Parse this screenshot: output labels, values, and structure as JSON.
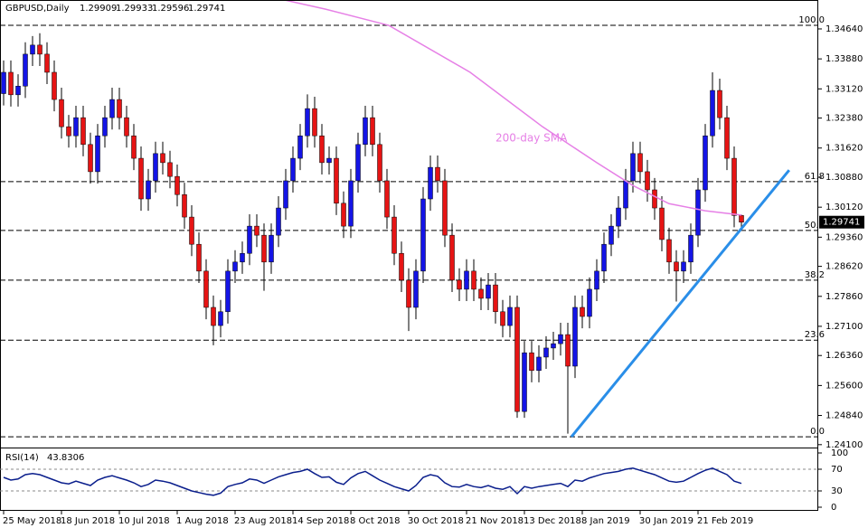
{
  "chart_data": {
    "type": "candlestick",
    "header": {
      "symbol": "GBPUSD,Daily",
      "open": 1.29909,
      "high": 1.29933,
      "low": 1.29596,
      "close": 1.29741
    },
    "candles": {
      "open": [
        1.33,
        1.3354,
        1.3297,
        1.3319,
        1.34,
        1.3423,
        1.34,
        1.3354,
        1.3285,
        1.3216,
        1.3193,
        1.3239,
        1.3171,
        1.3102,
        1.3193,
        1.3239,
        1.3285,
        1.3239,
        1.3193,
        1.3136,
        1.3033,
        1.3079,
        1.3148,
        1.3125,
        1.309,
        1.3044,
        1.2987,
        1.2918,
        1.285,
        1.2758,
        1.2712,
        1.2747,
        1.285,
        1.2873,
        1.2895,
        1.2964,
        1.2941,
        1.2873,
        1.2941,
        1.301,
        1.3079,
        1.3136,
        1.3193,
        1.3262,
        1.3193,
        1.3125,
        1.3136,
        1.3022,
        1.2964,
        1.3079,
        1.3171,
        1.3239,
        1.3171,
        1.3079,
        1.2987,
        1.2895,
        1.2827,
        1.2758,
        1.285,
        1.3033,
        1.3113,
        1.3079,
        1.2941,
        1.2827,
        1.2804,
        1.285,
        1.2804,
        1.2781,
        1.2815,
        1.2747,
        1.2712,
        1.2758,
        1.2494,
        1.2643,
        1.2598,
        1.2632,
        1.2655,
        1.2666,
        1.2689,
        1.2609,
        1.2758,
        1.2735,
        1.2804,
        1.285,
        1.2918,
        1.2964,
        1.301,
        1.3079,
        1.3148,
        1.3102,
        1.3056,
        1.301,
        1.293,
        1.2873,
        1.285,
        1.2873,
        1.2941,
        1.3056,
        1.3193,
        1.3308,
        1.3239,
        1.3136,
        1.2991
      ],
      "high": [
        1.3384,
        1.3384,
        1.3349,
        1.343,
        1.3446,
        1.3453,
        1.343,
        1.3384,
        1.3315,
        1.3246,
        1.3269,
        1.3269,
        1.3201,
        1.3223,
        1.3269,
        1.3315,
        1.3315,
        1.3269,
        1.3223,
        1.3166,
        1.3109,
        1.3178,
        1.3178,
        1.3155,
        1.312,
        1.3074,
        1.3017,
        1.2948,
        1.288,
        1.2788,
        1.2777,
        1.288,
        1.2903,
        1.2925,
        1.2994,
        1.2994,
        1.2971,
        1.2971,
        1.304,
        1.3109,
        1.3166,
        1.3223,
        1.3298,
        1.3292,
        1.3223,
        1.3166,
        1.3166,
        1.3052,
        1.3109,
        1.3201,
        1.3269,
        1.3269,
        1.3201,
        1.3109,
        1.3017,
        1.2925,
        1.2857,
        1.288,
        1.3063,
        1.3143,
        1.3143,
        1.3109,
        1.2971,
        1.2857,
        1.288,
        1.288,
        1.2834,
        1.2845,
        1.2845,
        1.2777,
        1.2788,
        1.2788,
        1.2673,
        1.2673,
        1.2662,
        1.2685,
        1.2696,
        1.2719,
        1.2719,
        1.2788,
        1.2788,
        1.2834,
        1.288,
        1.2948,
        1.2994,
        1.304,
        1.3109,
        1.3178,
        1.3178,
        1.3132,
        1.3086,
        1.304,
        1.296,
        1.2903,
        1.2903,
        1.2971,
        1.3086,
        1.3223,
        1.3354,
        1.3338,
        1.3269,
        1.3166,
        1.2993
      ],
      "low": [
        1.327,
        1.3267,
        1.3267,
        1.3289,
        1.337,
        1.337,
        1.3324,
        1.3255,
        1.3186,
        1.3163,
        1.3163,
        1.3141,
        1.3072,
        1.3072,
        1.3163,
        1.3209,
        1.3209,
        1.3163,
        1.3106,
        1.3003,
        1.3003,
        1.3049,
        1.3095,
        1.306,
        1.3014,
        1.2957,
        1.2888,
        1.282,
        1.2728,
        1.2662,
        1.2682,
        1.2717,
        1.282,
        1.2843,
        1.2865,
        1.2911,
        1.28,
        1.2843,
        1.2911,
        1.298,
        1.3049,
        1.3106,
        1.3163,
        1.3163,
        1.3095,
        1.3095,
        1.2992,
        1.2934,
        1.2934,
        1.3049,
        1.3141,
        1.3141,
        1.3049,
        1.2957,
        1.2865,
        1.2797,
        1.2698,
        1.2728,
        1.282,
        1.3003,
        1.3049,
        1.2911,
        1.2797,
        1.2774,
        1.2774,
        1.2774,
        1.2751,
        1.2751,
        1.2717,
        1.2682,
        1.2682,
        1.2478,
        1.2478,
        1.2568,
        1.2568,
        1.2602,
        1.2625,
        1.2636,
        1.2438,
        1.2579,
        1.2705,
        1.2705,
        1.2774,
        1.282,
        1.2888,
        1.2934,
        1.298,
        1.3049,
        1.3072,
        1.3026,
        1.298,
        1.29,
        1.2843,
        1.2773,
        1.282,
        1.2843,
        1.2911,
        1.3026,
        1.3163,
        1.3209,
        1.3106,
        1.2961,
        1.296
      ],
      "close": [
        1.3354,
        1.3297,
        1.3319,
        1.34,
        1.3423,
        1.34,
        1.3354,
        1.3285,
        1.3216,
        1.3193,
        1.3239,
        1.3171,
        1.3102,
        1.3193,
        1.3239,
        1.3285,
        1.3239,
        1.3193,
        1.3136,
        1.3033,
        1.3079,
        1.3148,
        1.3125,
        1.309,
        1.3044,
        1.2987,
        1.2918,
        1.285,
        1.2758,
        1.2712,
        1.2747,
        1.285,
        1.2873,
        1.2895,
        1.2964,
        1.2941,
        1.2873,
        1.2941,
        1.301,
        1.3079,
        1.3136,
        1.3193,
        1.3262,
        1.3193,
        1.3125,
        1.3136,
        1.3022,
        1.2964,
        1.3079,
        1.3171,
        1.3239,
        1.3171,
        1.3079,
        1.2987,
        1.2895,
        1.2827,
        1.2758,
        1.285,
        1.3033,
        1.3113,
        1.3079,
        1.2941,
        1.2827,
        1.2804,
        1.285,
        1.2804,
        1.2781,
        1.2815,
        1.2747,
        1.2712,
        1.2758,
        1.2494,
        1.2643,
        1.2598,
        1.2632,
        1.2655,
        1.2666,
        1.2689,
        1.2609,
        1.2758,
        1.2735,
        1.2804,
        1.285,
        1.2918,
        1.2964,
        1.301,
        1.3079,
        1.3148,
        1.3102,
        1.3056,
        1.301,
        1.293,
        1.2873,
        1.285,
        1.2873,
        1.2941,
        1.3056,
        1.3193,
        1.3308,
        1.3239,
        1.3136,
        1.2991,
        1.2974
      ],
      "up_color": "#1414e6",
      "down_color": "#e61414",
      "wick_color": "#000000"
    },
    "ylim": [
      1.2405,
      1.3535
    ],
    "yticks": [
      {
        "value": 1.3464,
        "label": "1.34640"
      },
      {
        "value": 1.3388,
        "label": "1.33880"
      },
      {
        "value": 1.3312,
        "label": "1.33120"
      },
      {
        "value": 1.3238,
        "label": "1.32380"
      },
      {
        "value": 1.3162,
        "label": "1.31620"
      },
      {
        "value": 1.3088,
        "label": "1.30880"
      },
      {
        "value": 1.3012,
        "label": "1.30120"
      },
      {
        "value": 1.2936,
        "label": "1.29360"
      },
      {
        "value": 1.2862,
        "label": "1.28620"
      },
      {
        "value": 1.2786,
        "label": "1.27860"
      },
      {
        "value": 1.271,
        "label": "1.27100"
      },
      {
        "value": 1.2636,
        "label": "1.26360"
      },
      {
        "value": 1.256,
        "label": "1.25600"
      },
      {
        "value": 1.2484,
        "label": "1.24840"
      },
      {
        "value": 1.241,
        "label": "1.24100"
      }
    ],
    "xticks": [
      {
        "value": 0,
        "label": "25 May 2018"
      },
      {
        "value": 8,
        "label": "18 Jun 2018"
      },
      {
        "value": 16,
        "label": "10 Jul 2018"
      },
      {
        "value": 24,
        "label": "1 Aug 2018"
      },
      {
        "value": 32,
        "label": "23 Aug 2018"
      },
      {
        "value": 40,
        "label": "14 Sep 2018"
      },
      {
        "value": 48,
        "label": "8 Oct 2018"
      },
      {
        "value": 56,
        "label": "30 Oct 2018"
      },
      {
        "value": 64,
        "label": "21 Nov 2018"
      },
      {
        "value": 72,
        "label": "13 Dec 2018"
      },
      {
        "value": 80,
        "label": "8 Jan 2019"
      },
      {
        "value": 88,
        "label": "30 Jan 2019"
      },
      {
        "value": 96,
        "label": "21 Feb 2019"
      }
    ],
    "fib_levels": [
      {
        "label": "100.0",
        "value": 1.3473
      },
      {
        "label": "61.8",
        "value": 1.3077
      },
      {
        "label": "50.0",
        "value": 1.2953
      },
      {
        "label": "38.2",
        "value": 1.2827
      },
      {
        "label": "23.6",
        "value": 1.2675
      },
      {
        "label": "0.0",
        "value": 1.243
      }
    ],
    "sma": {
      "name": "200-day SMA",
      "color": "#e680e6",
      "x": [
        38.9,
        44.5,
        53.25,
        64.5,
        74.5,
        82,
        87,
        92,
        97,
        102
      ],
      "values": [
        1.3537,
        1.3514,
        1.3473,
        1.3354,
        1.3216,
        1.3125,
        1.3067,
        1.3021,
        1.3003,
        1.2992
      ]
    },
    "trendline": {
      "color": "#2a8ee8",
      "x": [
        78.5,
        108.6
      ],
      "values": [
        1.243,
        1.3106
      ]
    },
    "rsi": {
      "name": "RSI(14)",
      "color": "#0a1e8c",
      "values": [
        55,
        50,
        52,
        60,
        62,
        60,
        55,
        50,
        45,
        43,
        48,
        44,
        40,
        50,
        55,
        58,
        54,
        50,
        45,
        38,
        42,
        50,
        48,
        45,
        40,
        35,
        30,
        27,
        24,
        22,
        26,
        38,
        42,
        45,
        52,
        50,
        44,
        50,
        56,
        60,
        64,
        66,
        70,
        62,
        55,
        56,
        46,
        42,
        54,
        62,
        66,
        58,
        50,
        44,
        38,
        34,
        30,
        40,
        55,
        60,
        57,
        45,
        38,
        37,
        42,
        38,
        36,
        40,
        35,
        33,
        38,
        25,
        38,
        35,
        38,
        40,
        42,
        44,
        38,
        50,
        48,
        54,
        58,
        62,
        64,
        66,
        70,
        72,
        68,
        64,
        60,
        54,
        48,
        46,
        48,
        55,
        62,
        68,
        72,
        66,
        60,
        48,
        43.8306
      ],
      "ylim": [
        0,
        100
      ],
      "yticks": [
        100,
        70,
        30,
        0
      ],
      "levels": [
        70,
        30
      ]
    }
  }
}
